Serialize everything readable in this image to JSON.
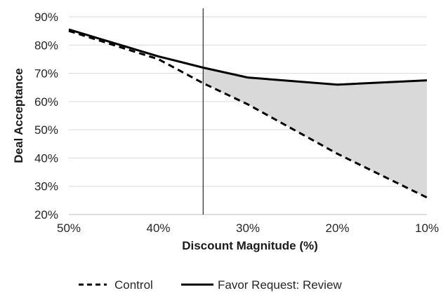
{
  "chart_data": {
    "type": "line",
    "title": "",
    "xlabel": "Discount Magnitude (%)",
    "ylabel": "Deal Acceptance",
    "categories": [
      "50%",
      "40%",
      "30%",
      "20%",
      "10%"
    ],
    "x": [
      50,
      40,
      30,
      20,
      10
    ],
    "ylim": [
      20,
      90
    ],
    "yticks": [
      "20%",
      "30%",
      "40%",
      "50%",
      "60%",
      "70%",
      "80%",
      "90%"
    ],
    "grid": true,
    "legend_position": "bottom",
    "reference_line_x": 35,
    "series": [
      {
        "name": "Control",
        "style": "dashed",
        "color": "#000000",
        "x": [
          50,
          40,
          35,
          30,
          20,
          10
        ],
        "values": [
          85,
          75,
          66.5,
          59,
          41.5,
          26
        ]
      },
      {
        "name": "Favor Request: Review",
        "style": "solid",
        "color": "#000000",
        "x": [
          50,
          40,
          35,
          30,
          20,
          10
        ],
        "values": [
          85.5,
          76,
          72,
          68.5,
          66,
          67.5
        ]
      }
    ],
    "shaded_region": {
      "between": [
        "Favor Request: Review",
        "Control"
      ],
      "from_x": 35,
      "to_x": 10,
      "color": "#d9d9d9"
    }
  }
}
